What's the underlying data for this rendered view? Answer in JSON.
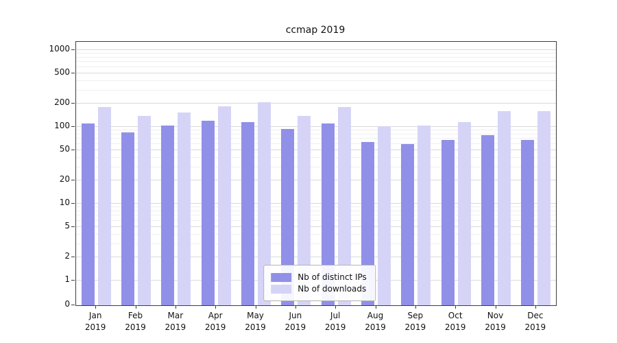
{
  "chart_data": {
    "type": "bar",
    "title": "ccmap 2019",
    "categories": [
      "Jan 2019",
      "Feb 2019",
      "Mar 2019",
      "Apr 2019",
      "May 2019",
      "Jun 2019",
      "Jul 2019",
      "Aug 2019",
      "Sep 2019",
      "Oct 2019",
      "Nov 2019",
      "Dec 2019"
    ],
    "series": [
      {
        "name": "Nb of distinct IPs",
        "color": "#9190e8",
        "values": [
          110,
          85,
          105,
          120,
          115,
          95,
          110,
          63,
          60,
          68,
          78,
          68
        ]
      },
      {
        "name": "Nb of downloads",
        "color": "#d5d4f7",
        "values": [
          180,
          140,
          155,
          185,
          210,
          140,
          180,
          103,
          105,
          115,
          160,
          160
        ]
      }
    ],
    "xlabel": "",
    "ylabel": "",
    "yscale": "symlog",
    "yticks": [
      0,
      1,
      2,
      5,
      10,
      20,
      50,
      100,
      200,
      500,
      1000
    ],
    "ylim": [
      0,
      1280
    ],
    "grid": true,
    "legend_position": "lower center"
  }
}
